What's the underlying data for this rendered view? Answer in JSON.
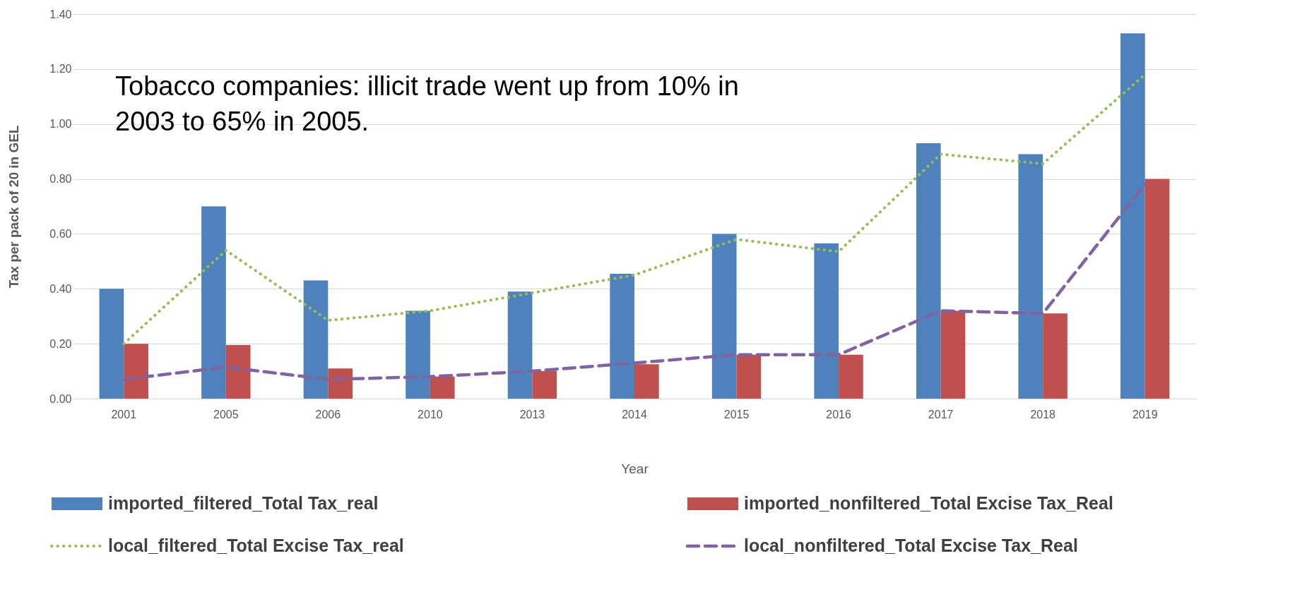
{
  "chart_data": {
    "type": "bar",
    "xlabel": "Year",
    "ylabel": "Tax per pack of 20 in GEL",
    "categories": [
      "2001",
      "2005",
      "2006",
      "2010",
      "2013",
      "2014",
      "2015",
      "2016",
      "2017",
      "2018",
      "2019"
    ],
    "series": [
      {
        "name": "imported_filtered_Total Tax_real",
        "color": "#4f81bd",
        "values": [
          0.4,
          0.7,
          0.43,
          0.32,
          0.39,
          0.455,
          0.6,
          0.565,
          0.93,
          0.89,
          1.33
        ]
      },
      {
        "name": "imported_nonfiltered_Total Excise Tax_Real",
        "color": "#c0504d",
        "values": [
          0.2,
          0.195,
          0.11,
          0.08,
          0.1,
          0.125,
          0.16,
          0.16,
          0.32,
          0.31,
          0.8
        ]
      },
      {
        "name": "local_filtered_Total Excise Tax_real",
        "type": "line",
        "line_style": "dotted",
        "color": "#9bbb59",
        "values": [
          0.2,
          0.54,
          0.285,
          0.32,
          0.385,
          0.45,
          0.58,
          0.535,
          0.89,
          0.855,
          1.18
        ]
      },
      {
        "name": "local_nonfiltered_Total Excise Tax_Real",
        "type": "line",
        "line_style": "dashed",
        "color": "#8064a2",
        "values": [
          0.07,
          0.115,
          0.07,
          0.08,
          0.1,
          0.13,
          0.16,
          0.16,
          0.32,
          0.31,
          0.78
        ]
      }
    ],
    "ylim": [
      0,
      1.4
    ],
    "yticks": [
      {
        "value": 0,
        "label": "0.00"
      },
      {
        "value": 0.2,
        "label": "0.20"
      },
      {
        "value": 0.4,
        "label": "0.40"
      },
      {
        "value": 0.6,
        "label": "0.60"
      },
      {
        "value": 0.8,
        "label": "0.80"
      },
      {
        "value": 1.0,
        "label": "1.00"
      },
      {
        "value": 1.2,
        "label": "1.20"
      },
      {
        "value": 1.4,
        "label": "1.40"
      }
    ],
    "grid": "y",
    "legend": "bottom",
    "annotations": [
      "Tobacco companies: illicit trade went up from 10% in\n2003 to 65% in 2005."
    ]
  }
}
